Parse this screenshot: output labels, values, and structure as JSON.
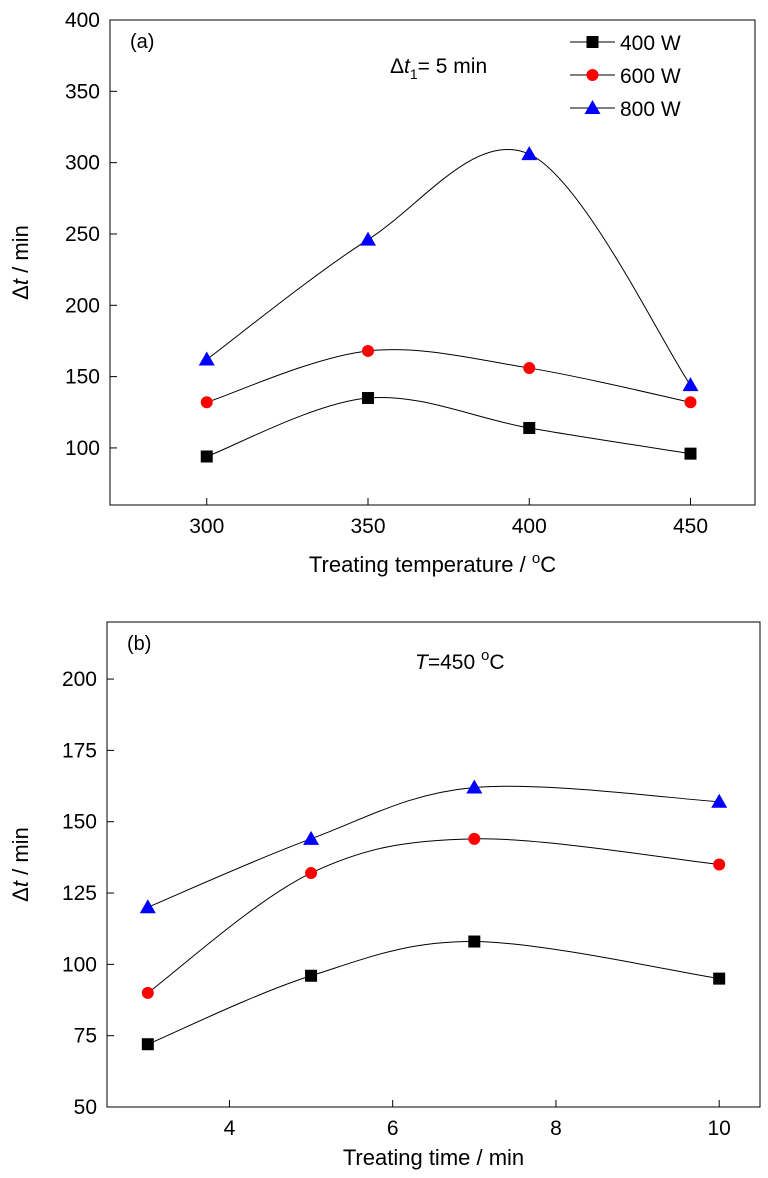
{
  "chart_data": [
    {
      "type": "line",
      "panel_label": "(a)",
      "annotation": {
        "prefix": "Δ",
        "var": "t",
        "sub": "1",
        "suffix": "= 5 min"
      },
      "xlabel": {
        "text": "Treating temperature / ",
        "sup": "o",
        "unit": "C"
      },
      "ylabel": {
        "prefix": "Δ",
        "var": "t",
        "suffix": " / min"
      },
      "xlim": [
        270,
        470
      ],
      "ylim": [
        60,
        400
      ],
      "xticks": [
        300,
        350,
        400,
        450
      ],
      "yticks": [
        100,
        150,
        200,
        250,
        300,
        350,
        400
      ],
      "legend_position": "top-right",
      "x": [
        300,
        350,
        400,
        450
      ],
      "series": [
        {
          "name": "400 W",
          "marker": "square",
          "color": "#000000",
          "values": [
            94,
            135,
            114,
            96
          ]
        },
        {
          "name": "600 W",
          "marker": "circle",
          "color": "#ff0000",
          "values": [
            132,
            168,
            156,
            132
          ]
        },
        {
          "name": "800 W",
          "marker": "triangle",
          "color": "#0000ff",
          "values": [
            162,
            246,
            306,
            144
          ]
        }
      ]
    },
    {
      "type": "line",
      "panel_label": "(b)",
      "annotation": {
        "var": "T",
        "text": "=450 ",
        "sup": "o",
        "unit": "C"
      },
      "xlabel": {
        "text": "Treating time / min"
      },
      "ylabel": {
        "prefix": "Δ",
        "var": "t",
        "suffix": " / min"
      },
      "xlim": [
        2.5,
        10.5
      ],
      "ylim": [
        50,
        220
      ],
      "xticks": [
        4,
        6,
        8,
        10
      ],
      "yticks": [
        50,
        75,
        100,
        125,
        150,
        175,
        200
      ],
      "x": [
        3,
        5,
        7,
        10
      ],
      "series": [
        {
          "marker": "square",
          "color": "#000000",
          "values": [
            72,
            96,
            108,
            95
          ]
        },
        {
          "marker": "circle",
          "color": "#ff0000",
          "values": [
            90,
            132,
            144,
            135
          ]
        },
        {
          "marker": "triangle",
          "color": "#0000ff",
          "values": [
            120,
            144,
            162,
            157
          ]
        }
      ]
    }
  ]
}
